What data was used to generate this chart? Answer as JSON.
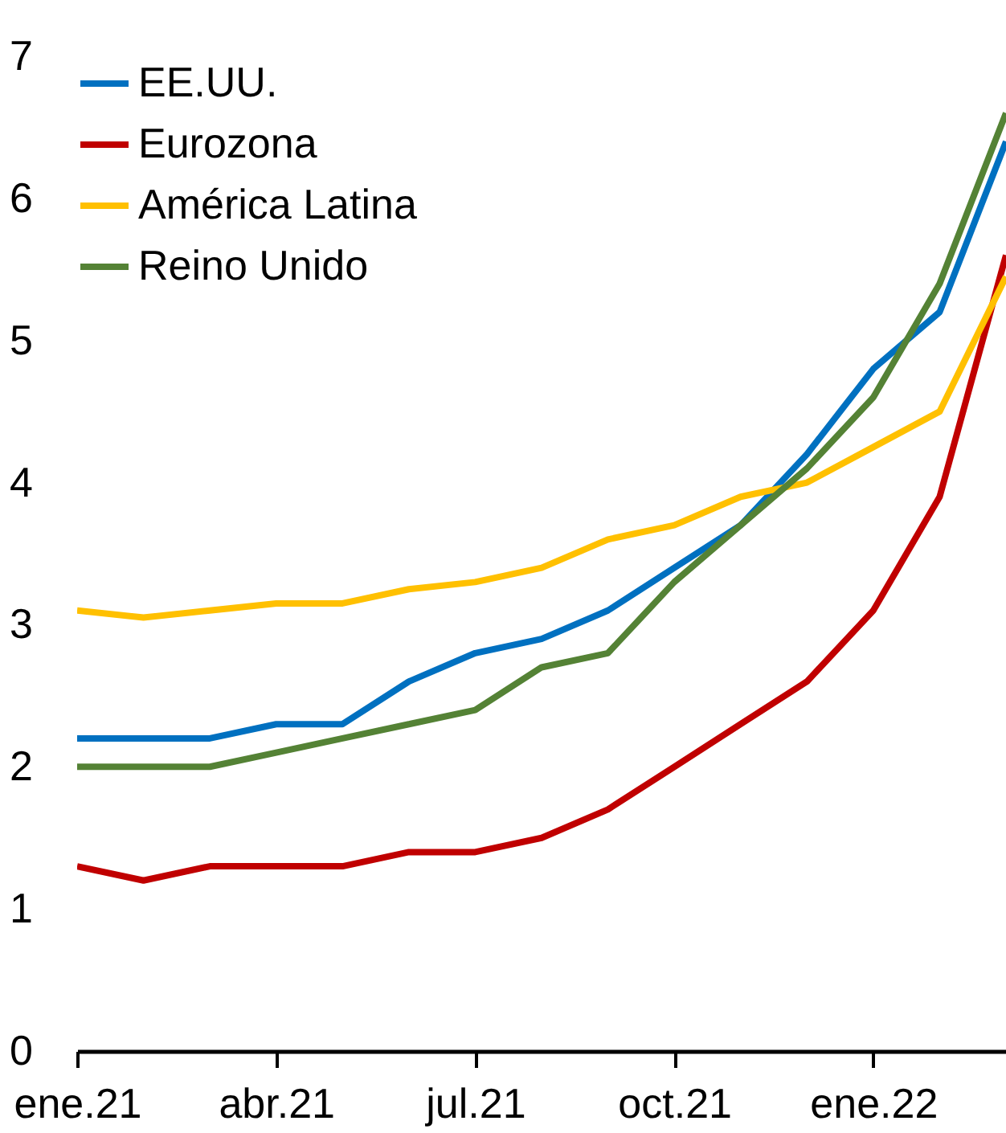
{
  "chart_data": {
    "type": "line",
    "categories": [
      "ene.21",
      null,
      null,
      "abr.21",
      null,
      null,
      "jul.21",
      null,
      null,
      "oct.21",
      null,
      null,
      "ene.22",
      null,
      null
    ],
    "series": [
      {
        "name": "EE.UU.",
        "color": "#0070c0",
        "values": [
          2.2,
          2.2,
          2.2,
          2.3,
          2.3,
          2.6,
          2.8,
          2.9,
          3.1,
          3.4,
          3.7,
          4.2,
          4.8,
          5.2,
          6.4
        ]
      },
      {
        "name": "Eurozona",
        "color": "#c00000",
        "values": [
          1.3,
          1.2,
          1.3,
          1.3,
          1.3,
          1.4,
          1.4,
          1.5,
          1.7,
          2.0,
          2.3,
          2.6,
          3.1,
          3.9,
          5.6
        ]
      },
      {
        "name": "América Latina",
        "color": "#ffc000",
        "values": [
          3.1,
          3.05,
          3.1,
          3.15,
          3.15,
          3.25,
          3.3,
          3.4,
          3.6,
          3.7,
          3.9,
          4.0,
          4.25,
          4.5,
          5.45
        ]
      },
      {
        "name": "Reino Unido",
        "color": "#548235",
        "values": [
          2.0,
          2.0,
          2.0,
          2.1,
          2.2,
          2.3,
          2.4,
          2.7,
          2.8,
          3.3,
          3.7,
          4.1,
          4.6,
          5.4,
          6.6
        ]
      }
    ],
    "ylim": [
      0,
      7
    ],
    "yticks": [
      0,
      1,
      2,
      3,
      4,
      5,
      6,
      7
    ],
    "grid": false,
    "legend": "top left",
    "marker": "none",
    "line_style": "solid"
  }
}
